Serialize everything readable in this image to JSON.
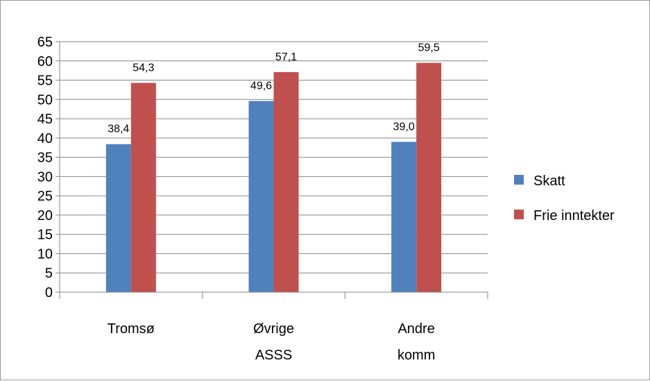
{
  "chart_data": {
    "type": "bar",
    "categories": [
      [
        "Tromsø"
      ],
      [
        "Øvrige",
        "ASSS"
      ],
      [
        "Andre",
        "komm"
      ]
    ],
    "series": [
      {
        "name": "Skatt",
        "color": "#4f81bd",
        "values": [
          38.4,
          49.6,
          39.0
        ],
        "labels": [
          "38,4",
          "49,6",
          "39,0"
        ]
      },
      {
        "name": "Frie inntekter",
        "color": "#c0504d",
        "values": [
          54.3,
          57.1,
          59.5
        ],
        "labels": [
          "54,3",
          "57,1",
          "59,5"
        ]
      }
    ],
    "ylim": [
      0,
      65
    ],
    "ytick_step": 5,
    "yticks": [
      "0",
      "5",
      "10",
      "15",
      "20",
      "25",
      "30",
      "35",
      "40",
      "45",
      "50",
      "55",
      "60",
      "65"
    ],
    "grid": true,
    "legend_position": "right"
  }
}
